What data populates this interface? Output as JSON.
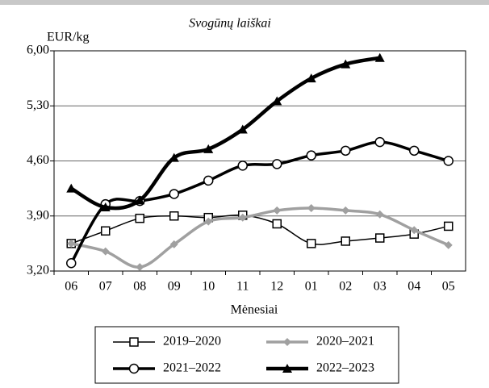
{
  "chart_data": {
    "type": "line",
    "title": "Svogūnų laiškai",
    "y_label": "EUR/kg",
    "x_label": "Mėnesiai",
    "categories": [
      "06",
      "07",
      "08",
      "09",
      "10",
      "11",
      "12",
      "01",
      "02",
      "03",
      "04",
      "05"
    ],
    "series": [
      {
        "name": "2019–2020",
        "color": "#000000",
        "marker": "square",
        "line_width": 1.5,
        "values": [
          3.55,
          3.71,
          3.87,
          3.9,
          3.88,
          3.91,
          3.8,
          3.55,
          3.58,
          3.62,
          3.67,
          3.77
        ]
      },
      {
        "name": "2020–2021",
        "color": "#a0a0a0",
        "marker": "diamond",
        "line_width": 3.5,
        "values": [
          3.55,
          3.45,
          3.25,
          3.54,
          3.83,
          3.88,
          3.97,
          4.0,
          3.97,
          3.92,
          3.72,
          3.53
        ]
      },
      {
        "name": "2021–2022",
        "color": "#000000",
        "marker": "circle",
        "line_width": 3.5,
        "values": [
          3.3,
          4.05,
          4.09,
          4.18,
          4.35,
          4.54,
          4.56,
          4.67,
          4.73,
          4.84,
          4.73,
          4.6
        ]
      },
      {
        "name": "2022–2023",
        "color": "#000000",
        "marker": "triangle",
        "line_width": 4.5,
        "values": [
          4.25,
          4.01,
          4.1,
          4.64,
          4.75,
          5.0,
          5.36,
          5.65,
          5.83,
          5.91,
          null,
          null
        ]
      }
    ],
    "ylim": [
      3.2,
      6.0
    ],
    "yticks": [
      {
        "value": 3.2,
        "label": "3,20"
      },
      {
        "value": 3.9,
        "label": "3,90"
      },
      {
        "value": 4.6,
        "label": "4,60"
      },
      {
        "value": 5.3,
        "label": "5,30"
      },
      {
        "value": 6.0,
        "label": "6,00"
      }
    ],
    "grid": true,
    "legend": "bottom"
  }
}
